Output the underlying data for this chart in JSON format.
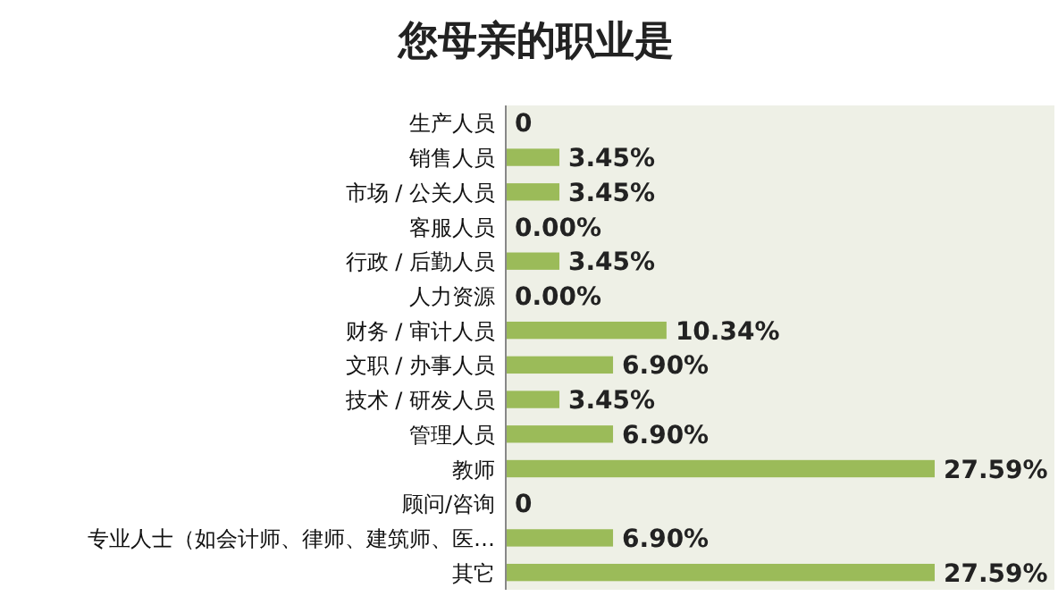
{
  "chart_data": {
    "type": "bar",
    "orientation": "horizontal",
    "title": "您母亲的职业是",
    "categories": [
      "生产人员",
      "销售人员",
      "市场 / 公关人员",
      "客服人员",
      "行政 / 后勤人员",
      "人力资源",
      "财务 / 审计人员",
      "文职 / 办事人员",
      "技术 / 研发人员",
      "管理人员",
      "教师",
      "顾问/咨询",
      "专业人士（如会计师、律师、建筑师、医…",
      "其它"
    ],
    "values": [
      0,
      3.45,
      3.45,
      0.0,
      3.45,
      0.0,
      10.34,
      6.9,
      3.45,
      6.9,
      27.59,
      0,
      6.9,
      27.59
    ],
    "value_labels": [
      "0",
      "3.45%",
      "3.45%",
      "0.00%",
      "3.45%",
      "0.00%",
      "10.34%",
      "6.90%",
      "3.45%",
      "6.90%",
      "27.59%",
      "0",
      "6.90%",
      "27.59%"
    ],
    "color": "#9bbb59"
  }
}
